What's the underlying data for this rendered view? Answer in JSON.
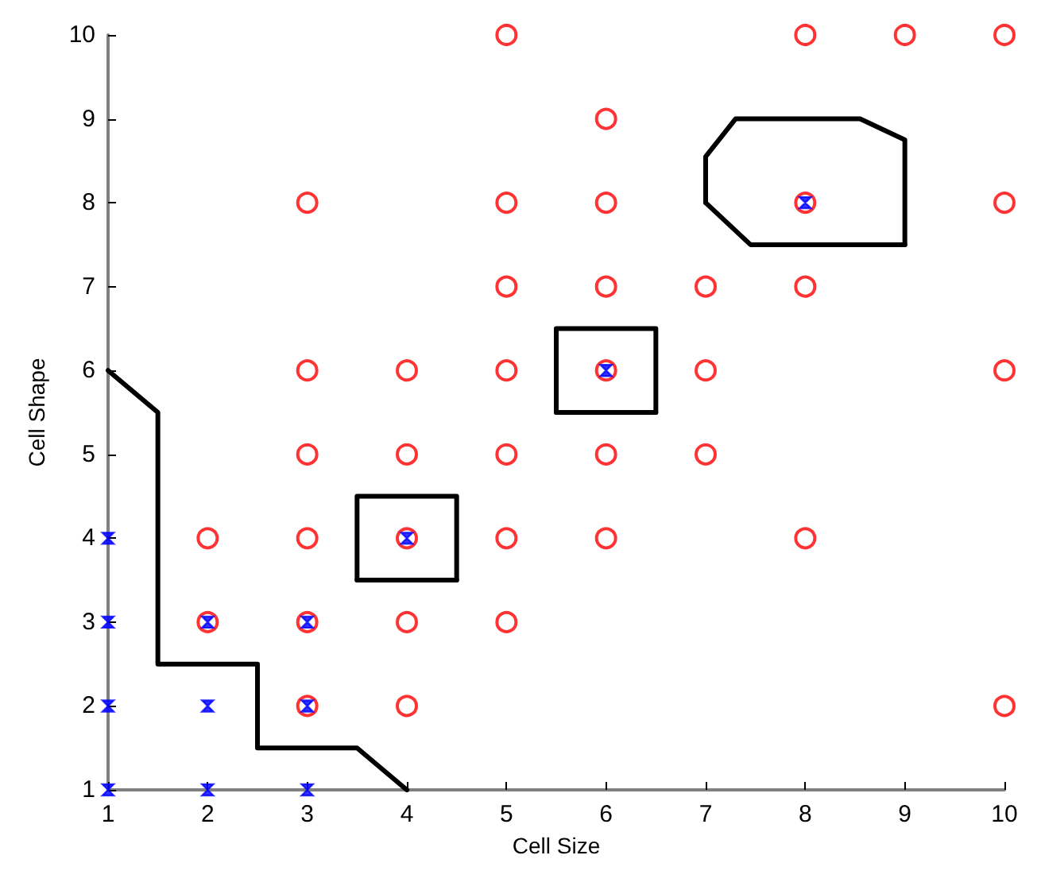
{
  "chart_data": {
    "type": "scatter",
    "xlabel": "Cell Size",
    "ylabel": "Cell Shape",
    "xlim": [
      1,
      10
    ],
    "ylim": [
      1,
      10
    ],
    "xticks": [
      1,
      2,
      3,
      4,
      5,
      6,
      7,
      8,
      9,
      10
    ],
    "yticks": [
      1,
      2,
      3,
      4,
      5,
      6,
      7,
      8,
      9,
      10
    ],
    "series": [
      {
        "color": "#ff0000",
        "marker": "circle",
        "x": [
          5,
          8,
          9,
          10,
          6,
          3,
          5,
          6,
          8,
          10,
          5,
          6,
          7,
          8,
          3,
          4,
          5,
          6,
          7,
          10,
          3,
          4,
          5,
          6,
          7,
          2,
          3,
          4,
          5,
          6,
          8,
          2,
          3,
          4,
          5,
          3,
          4,
          10
        ],
        "values": [
          10,
          10,
          10,
          10,
          9,
          8,
          8,
          8,
          8,
          8,
          7,
          7,
          7,
          7,
          6,
          6,
          6,
          6,
          6,
          6,
          5,
          5,
          5,
          5,
          5,
          4,
          4,
          4,
          4,
          4,
          4,
          3,
          3,
          3,
          3,
          2,
          2,
          2
        ]
      },
      {
        "color": "#0000ff",
        "marker": "cross",
        "x": [
          1,
          1,
          1,
          1,
          2,
          2,
          2,
          3,
          3,
          3,
          4,
          6,
          8
        ],
        "values": [
          1,
          2,
          3,
          4,
          1,
          2,
          3,
          1,
          2,
          3,
          4,
          6,
          8
        ]
      },
      {
        "type": "line",
        "color": "#000000",
        "marker": "none",
        "line_style": "solid",
        "x": [
          1,
          1.5,
          1.5,
          2.5,
          2.5,
          3.5,
          4
        ],
        "values": [
          6,
          5.5,
          2.5,
          2.5,
          1.5,
          1.5,
          1
        ]
      },
      {
        "type": "line",
        "color": "#000000",
        "marker": "none",
        "line_style": "solid",
        "x": [
          3.5,
          3.5,
          4.5,
          4.5
        ],
        "values": [
          3.5,
          4.5,
          4.5,
          3.5
        ]
      },
      {
        "type": "line",
        "color": "#000000",
        "marker": "none",
        "line_style": "solid",
        "x": [
          3.5,
          4.5
        ],
        "values": [
          3.5,
          3.5
        ]
      },
      {
        "type": "line",
        "color": "#000000",
        "marker": "none",
        "line_style": "solid",
        "x": [
          5.5,
          5.5,
          6.5,
          6.5
        ],
        "values": [
          5.5,
          6.5,
          6.5,
          5.5
        ]
      },
      {
        "type": "line",
        "color": "#000000",
        "marker": "none",
        "line_style": "solid",
        "x": [
          5.5,
          6.5
        ],
        "values": [
          5.5,
          5.5
        ]
      },
      {
        "type": "line",
        "color": "#000000",
        "marker": "none",
        "line_style": "solid",
        "x": [
          7,
          7,
          7.3,
          8.55,
          9,
          9
        ],
        "values": [
          8,
          8.55,
          9,
          9,
          8.75,
          7.5
        ]
      },
      {
        "type": "line",
        "color": "#000000",
        "marker": "none",
        "line_style": "solid",
        "x": [
          7,
          7.45,
          9
        ],
        "values": [
          8,
          7.5,
          7.5
        ]
      }
    ]
  }
}
